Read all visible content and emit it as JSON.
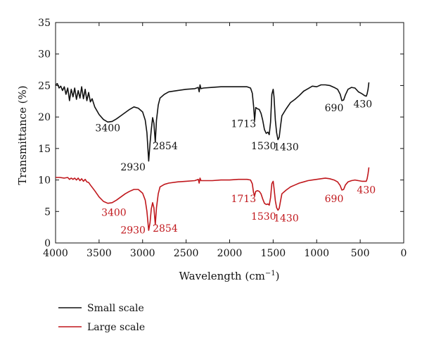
{
  "chart_data": {
    "type": "line",
    "xlabel": "Wavelength (cm",
    "xlabel_superscript": "−1",
    "xlabel_close": ")",
    "ylabel": "Transmittance (%)",
    "xlim": [
      4000,
      0
    ],
    "ylim": [
      0,
      35
    ],
    "x_ticks": [
      4000,
      3500,
      3000,
      2500,
      2000,
      1500,
      1000,
      500,
      0
    ],
    "y_ticks": [
      0,
      5,
      10,
      15,
      20,
      25,
      30,
      35
    ],
    "x_tick_labels": [
      "4000",
      "3500",
      "3000",
      "2500",
      "2000",
      "1500",
      "1000",
      "500",
      "0"
    ],
    "y_tick_labels": [
      "0",
      "5",
      "10",
      "15",
      "20",
      "25",
      "30",
      "35"
    ],
    "grid": false,
    "legend_position": "bottom-left, below plot",
    "series": [
      {
        "name": "Small scale",
        "color": "#111111",
        "points": [
          [
            4000,
            25.1
          ],
          [
            3980,
            25.3
          ],
          [
            3960,
            24.6
          ],
          [
            3940,
            24.9
          ],
          [
            3920,
            24.2
          ],
          [
            3900,
            24.8
          ],
          [
            3880,
            23.6
          ],
          [
            3860,
            24.6
          ],
          [
            3840,
            22.6
          ],
          [
            3820,
            24.4
          ],
          [
            3800,
            23.2
          ],
          [
            3780,
            24.6
          ],
          [
            3760,
            22.8
          ],
          [
            3740,
            24.2
          ],
          [
            3720,
            23.0
          ],
          [
            3700,
            24.8
          ],
          [
            3680,
            22.9
          ],
          [
            3660,
            24.4
          ],
          [
            3640,
            22.6
          ],
          [
            3620,
            23.9
          ],
          [
            3600,
            22.4
          ],
          [
            3580,
            22.9
          ],
          [
            3550,
            21.6
          ],
          [
            3500,
            20.4
          ],
          [
            3450,
            19.6
          ],
          [
            3400,
            19.2
          ],
          [
            3350,
            19.3
          ],
          [
            3300,
            19.7
          ],
          [
            3250,
            20.2
          ],
          [
            3200,
            20.7
          ],
          [
            3150,
            21.2
          ],
          [
            3100,
            21.6
          ],
          [
            3050,
            21.4
          ],
          [
            3000,
            20.8
          ],
          [
            2970,
            19.5
          ],
          [
            2950,
            17.5
          ],
          [
            2930,
            13.0
          ],
          [
            2915,
            15.8
          ],
          [
            2900,
            18.0
          ],
          [
            2885,
            19.9
          ],
          [
            2870,
            19.0
          ],
          [
            2854,
            16.0
          ],
          [
            2840,
            19.5
          ],
          [
            2820,
            21.9
          ],
          [
            2800,
            23.0
          ],
          [
            2750,
            23.6
          ],
          [
            2700,
            24.0
          ],
          [
            2600,
            24.2
          ],
          [
            2500,
            24.4
          ],
          [
            2400,
            24.5
          ],
          [
            2360,
            24.7
          ],
          [
            2350,
            24.0
          ],
          [
            2340,
            25.1
          ],
          [
            2330,
            24.5
          ],
          [
            2300,
            24.6
          ],
          [
            2200,
            24.7
          ],
          [
            2100,
            24.8
          ],
          [
            2000,
            24.8
          ],
          [
            1900,
            24.8
          ],
          [
            1800,
            24.8
          ],
          [
            1760,
            24.6
          ],
          [
            1740,
            23.8
          ],
          [
            1725,
            21.8
          ],
          [
            1713,
            19.5
          ],
          [
            1700,
            21.5
          ],
          [
            1680,
            21.3
          ],
          [
            1660,
            21.2
          ],
          [
            1640,
            20.6
          ],
          [
            1620,
            19.5
          ],
          [
            1600,
            18.0
          ],
          [
            1580,
            17.4
          ],
          [
            1560,
            17.6
          ],
          [
            1545,
            17.2
          ],
          [
            1530,
            19.2
          ],
          [
            1515,
            23.6
          ],
          [
            1500,
            24.4
          ],
          [
            1490,
            23.2
          ],
          [
            1475,
            19.5
          ],
          [
            1460,
            17.5
          ],
          [
            1445,
            16.4
          ],
          [
            1430,
            16.8
          ],
          [
            1415,
            18.6
          ],
          [
            1400,
            20.2
          ],
          [
            1350,
            21.3
          ],
          [
            1300,
            22.3
          ],
          [
            1250,
            22.8
          ],
          [
            1200,
            23.4
          ],
          [
            1150,
            24.1
          ],
          [
            1100,
            24.5
          ],
          [
            1050,
            24.9
          ],
          [
            1000,
            24.8
          ],
          [
            950,
            25.1
          ],
          [
            900,
            25.1
          ],
          [
            850,
            25.0
          ],
          [
            800,
            24.7
          ],
          [
            760,
            24.4
          ],
          [
            730,
            23.6
          ],
          [
            710,
            22.6
          ],
          [
            690,
            22.7
          ],
          [
            670,
            23.5
          ],
          [
            640,
            24.4
          ],
          [
            600,
            24.7
          ],
          [
            560,
            24.6
          ],
          [
            520,
            24.0
          ],
          [
            480,
            23.7
          ],
          [
            450,
            23.4
          ],
          [
            430,
            23.3
          ],
          [
            420,
            23.7
          ],
          [
            410,
            24.4
          ],
          [
            400,
            25.5
          ]
        ]
      },
      {
        "name": "Large scale",
        "color": "#c0171c",
        "points": [
          [
            4000,
            10.4
          ],
          [
            3950,
            10.4
          ],
          [
            3900,
            10.3
          ],
          [
            3860,
            10.4
          ],
          [
            3840,
            10.1
          ],
          [
            3820,
            10.3
          ],
          [
            3800,
            10.1
          ],
          [
            3780,
            10.3
          ],
          [
            3760,
            10.0
          ],
          [
            3740,
            10.3
          ],
          [
            3720,
            9.9
          ],
          [
            3700,
            10.2
          ],
          [
            3680,
            9.8
          ],
          [
            3660,
            10.1
          ],
          [
            3640,
            9.7
          ],
          [
            3620,
            9.6
          ],
          [
            3600,
            9.2
          ],
          [
            3550,
            8.3
          ],
          [
            3500,
            7.3
          ],
          [
            3450,
            6.6
          ],
          [
            3400,
            6.3
          ],
          [
            3350,
            6.4
          ],
          [
            3300,
            6.8
          ],
          [
            3250,
            7.3
          ],
          [
            3200,
            7.8
          ],
          [
            3150,
            8.2
          ],
          [
            3100,
            8.5
          ],
          [
            3050,
            8.5
          ],
          [
            3000,
            7.9
          ],
          [
            2970,
            6.8
          ],
          [
            2950,
            5.0
          ],
          [
            2930,
            2.0
          ],
          [
            2915,
            3.2
          ],
          [
            2900,
            5.4
          ],
          [
            2885,
            6.4
          ],
          [
            2870,
            5.6
          ],
          [
            2854,
            2.9
          ],
          [
            2840,
            5.6
          ],
          [
            2820,
            7.8
          ],
          [
            2800,
            8.9
          ],
          [
            2750,
            9.3
          ],
          [
            2700,
            9.5
          ],
          [
            2600,
            9.7
          ],
          [
            2500,
            9.8
          ],
          [
            2400,
            9.9
          ],
          [
            2360,
            10.1
          ],
          [
            2350,
            9.5
          ],
          [
            2340,
            10.3
          ],
          [
            2330,
            9.9
          ],
          [
            2300,
            9.9
          ],
          [
            2200,
            9.9
          ],
          [
            2100,
            10.0
          ],
          [
            2000,
            10.0
          ],
          [
            1900,
            10.1
          ],
          [
            1800,
            10.1
          ],
          [
            1760,
            10.0
          ],
          [
            1740,
            9.4
          ],
          [
            1725,
            8.0
          ],
          [
            1713,
            7.5
          ],
          [
            1700,
            8.2
          ],
          [
            1680,
            8.3
          ],
          [
            1660,
            8.2
          ],
          [
            1640,
            7.8
          ],
          [
            1620,
            7.0
          ],
          [
            1600,
            6.3
          ],
          [
            1580,
            6.1
          ],
          [
            1560,
            6.2
          ],
          [
            1545,
            6.0
          ],
          [
            1530,
            7.2
          ],
          [
            1515,
            9.4
          ],
          [
            1500,
            9.8
          ],
          [
            1490,
            8.7
          ],
          [
            1475,
            6.7
          ],
          [
            1460,
            5.6
          ],
          [
            1445,
            5.2
          ],
          [
            1430,
            5.5
          ],
          [
            1415,
            6.7
          ],
          [
            1400,
            7.8
          ],
          [
            1350,
            8.4
          ],
          [
            1300,
            8.9
          ],
          [
            1250,
            9.2
          ],
          [
            1200,
            9.5
          ],
          [
            1150,
            9.7
          ],
          [
            1100,
            9.9
          ],
          [
            1050,
            10.0
          ],
          [
            1000,
            10.1
          ],
          [
            950,
            10.2
          ],
          [
            900,
            10.3
          ],
          [
            850,
            10.2
          ],
          [
            800,
            10.0
          ],
          [
            760,
            9.7
          ],
          [
            730,
            9.1
          ],
          [
            710,
            8.4
          ],
          [
            690,
            8.5
          ],
          [
            670,
            9.2
          ],
          [
            640,
            9.7
          ],
          [
            600,
            9.9
          ],
          [
            560,
            10.0
          ],
          [
            520,
            9.9
          ],
          [
            480,
            9.8
          ],
          [
            450,
            9.8
          ],
          [
            430,
            9.8
          ],
          [
            420,
            10.2
          ],
          [
            410,
            11.0
          ],
          [
            400,
            12.0
          ]
        ]
      }
    ],
    "annotations": [
      {
        "series": "Small scale",
        "text": "3400",
        "x": 3400,
        "y": 19.2,
        "label_x": 3400,
        "label_y": 17.7
      },
      {
        "series": "Small scale",
        "text": "2930",
        "x": 2930,
        "y": 13.0,
        "label_x": 3110,
        "label_y": 11.5
      },
      {
        "series": "Small scale",
        "text": "2854",
        "x": 2854,
        "y": 16.0,
        "label_x": 2740,
        "label_y": 14.9
      },
      {
        "series": "Small scale",
        "text": "1713",
        "x": 1713,
        "y": 19.5,
        "label_x": 1840,
        "label_y": 18.4
      },
      {
        "series": "Small scale",
        "text": "1530",
        "x": 1530,
        "y": 17.2,
        "label_x": 1610,
        "label_y": 14.9
      },
      {
        "series": "Small scale",
        "text": "1430",
        "x": 1430,
        "y": 16.4,
        "label_x": 1350,
        "label_y": 14.7
      },
      {
        "series": "Small scale",
        "text": "690",
        "x": 690,
        "y": 22.6,
        "label_x": 800,
        "label_y": 20.9
      },
      {
        "series": "Small scale",
        "text": "430",
        "x": 430,
        "y": 23.3,
        "label_x": 470,
        "label_y": 21.5
      },
      {
        "series": "Large scale",
        "text": "3400",
        "x": 3400,
        "y": 6.3,
        "label_x": 3330,
        "label_y": 4.3
      },
      {
        "series": "Large scale",
        "text": "2930",
        "x": 2930,
        "y": 2.0,
        "label_x": 3110,
        "label_y": 1.5
      },
      {
        "series": "Large scale",
        "text": "2854",
        "x": 2854,
        "y": 2.9,
        "label_x": 2740,
        "label_y": 1.8
      },
      {
        "series": "Large scale",
        "text": "1713",
        "x": 1713,
        "y": 7.5,
        "label_x": 1840,
        "label_y": 6.5
      },
      {
        "series": "Large scale",
        "text": "1530",
        "x": 1530,
        "y": 6.0,
        "label_x": 1610,
        "label_y": 3.7
      },
      {
        "series": "Large scale",
        "text": "1430",
        "x": 1430,
        "y": 5.2,
        "label_x": 1350,
        "label_y": 3.4
      },
      {
        "series": "Large scale",
        "text": "690",
        "x": 690,
        "y": 8.4,
        "label_x": 800,
        "label_y": 6.5
      },
      {
        "series": "Large scale",
        "text": "430",
        "x": 430,
        "y": 9.8,
        "label_x": 430,
        "label_y": 7.9
      }
    ]
  },
  "legend": {
    "items": [
      {
        "label": "Small scale",
        "color": "#111111"
      },
      {
        "label": "Large scale",
        "color": "#c0171c"
      }
    ]
  }
}
